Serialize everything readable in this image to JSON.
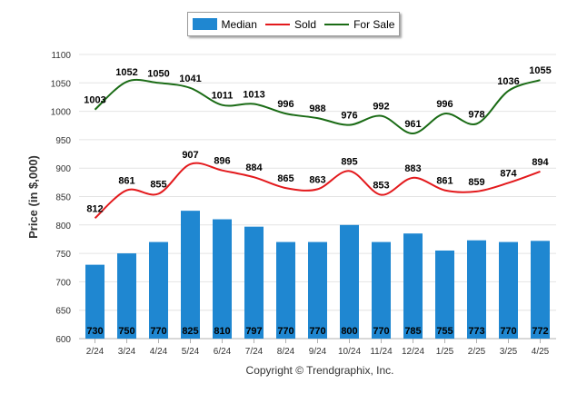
{
  "chart_data": {
    "type": "bar",
    "categories": [
      "2/24",
      "3/24",
      "4/24",
      "5/24",
      "6/24",
      "7/24",
      "8/24",
      "9/24",
      "10/24",
      "11/24",
      "12/24",
      "1/25",
      "2/25",
      "3/25",
      "4/25"
    ],
    "series": [
      {
        "name": "Median",
        "kind": "bar",
        "color": "#1f87d1",
        "values": [
          730,
          750,
          770,
          825,
          810,
          797,
          770,
          770,
          800,
          770,
          785,
          755,
          773,
          770,
          772
        ]
      },
      {
        "name": "Sold",
        "kind": "line",
        "color": "#e3191c",
        "values": [
          812,
          861,
          855,
          907,
          896,
          884,
          865,
          863,
          895,
          853,
          883,
          861,
          859,
          874,
          894
        ]
      },
      {
        "name": "For Sale",
        "kind": "line",
        "color": "#1a6b15",
        "values": [
          1003,
          1052,
          1050,
          1041,
          1011,
          1013,
          996,
          988,
          976,
          992,
          961,
          996,
          978,
          1036,
          1055
        ]
      }
    ],
    "ylabel": "Price (in $,000)",
    "ylim": [
      600,
      1100
    ],
    "yticks": [
      600,
      650,
      700,
      750,
      800,
      850,
      900,
      950,
      1000,
      1050,
      1100
    ],
    "grid": true,
    "legend": "top-center",
    "footer": "Copyright © Trendgraphix, Inc."
  }
}
